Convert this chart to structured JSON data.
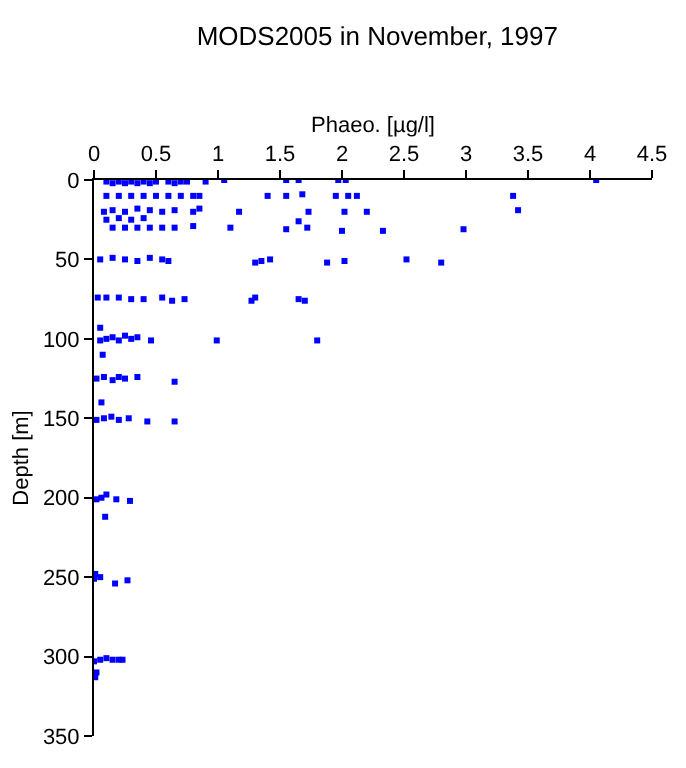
{
  "chart_data": {
    "type": "scatter",
    "title": "MODS2005 in November, 1997",
    "xlabel": "Phaeo. [µg/l]",
    "ylabel": "Depth [m]",
    "xlim": [
      0,
      4.5
    ],
    "xticks": [
      0,
      0.5,
      1,
      1.5,
      2,
      2.5,
      3,
      3.5,
      4,
      4.5
    ],
    "ylim": [
      350,
      0
    ],
    "yticks": [
      0,
      50,
      100,
      150,
      200,
      250,
      300,
      350
    ],
    "grid": false,
    "marker": "square",
    "series": [
      {
        "color": "#0000ff",
        "x": [
          0.1,
          0.15,
          0.2,
          0.25,
          0.3,
          0.35,
          0.4,
          0.45,
          0.5,
          0.6,
          0.65,
          0.7,
          0.75,
          0.9,
          1.05,
          1.55,
          1.65,
          1.97,
          2.03,
          4.05,
          0.1,
          0.2,
          0.3,
          0.4,
          0.5,
          0.6,
          0.7,
          0.8,
          0.85,
          1.4,
          1.55,
          1.68,
          1.95,
          2.05,
          2.12,
          3.38,
          0.08,
          0.15,
          0.25,
          0.35,
          0.45,
          0.55,
          0.65,
          0.8,
          0.85,
          1.17,
          1.73,
          2.02,
          2.2,
          3.42,
          0.1,
          0.2,
          0.3,
          0.4,
          1.65,
          0.15,
          0.25,
          0.35,
          0.45,
          0.55,
          0.65,
          0.8,
          1.1,
          1.55,
          1.72,
          2.0,
          2.33,
          2.98,
          0.05,
          0.15,
          0.25,
          0.35,
          0.45,
          0.55,
          0.6,
          1.3,
          1.35,
          1.42,
          1.88,
          2.02,
          2.52,
          2.8,
          0.03,
          0.1,
          0.2,
          0.3,
          0.4,
          0.55,
          0.63,
          0.73,
          1.27,
          1.3,
          1.65,
          1.7,
          0.05,
          0.05,
          0.1,
          0.15,
          0.2,
          0.25,
          0.3,
          0.35,
          0.46,
          0.99,
          1.8,
          0.07,
          0.02,
          0.08,
          0.15,
          0.2,
          0.25,
          0.35,
          0.65,
          0.06,
          0.02,
          0.08,
          0.14,
          0.2,
          0.28,
          0.43,
          0.65,
          0.02,
          0.06,
          0.1,
          0.18,
          0.29,
          0.09,
          0.01,
          0.0,
          0.05,
          0.17,
          0.27,
          0.0,
          0.05,
          0.1,
          0.15,
          0.2,
          0.23,
          0.02,
          0.01
        ],
        "values": [
          1,
          2,
          1,
          2,
          1,
          2,
          1,
          2,
          1,
          1,
          2,
          1,
          1,
          1,
          0,
          0,
          0,
          0,
          0,
          0,
          10,
          10,
          10,
          10,
          10,
          10,
          10,
          10,
          10,
          10,
          10,
          9,
          10,
          10,
          10,
          10,
          20,
          19,
          20,
          18,
          19,
          20,
          19,
          20,
          18,
          20,
          20,
          20,
          20,
          19,
          25,
          24,
          25,
          24,
          26,
          30,
          30,
          30,
          30,
          30,
          30,
          29,
          30,
          31,
          30,
          32,
          32,
          31,
          50,
          49,
          50,
          51,
          49,
          50,
          51,
          52,
          51,
          50,
          52,
          51,
          50,
          52,
          74,
          74,
          74,
          75,
          75,
          74,
          76,
          75,
          76,
          74,
          75,
          76,
          93,
          101,
          100,
          99,
          101,
          98,
          100,
          99,
          101,
          101,
          101,
          110,
          125,
          124,
          126,
          124,
          125,
          124,
          127,
          140,
          151,
          150,
          149,
          151,
          150,
          152,
          152,
          201,
          200,
          198,
          201,
          202,
          212,
          248,
          251,
          250,
          254,
          252,
          303,
          302,
          301,
          302,
          302,
          302,
          310,
          313
        ]
      }
    ]
  }
}
